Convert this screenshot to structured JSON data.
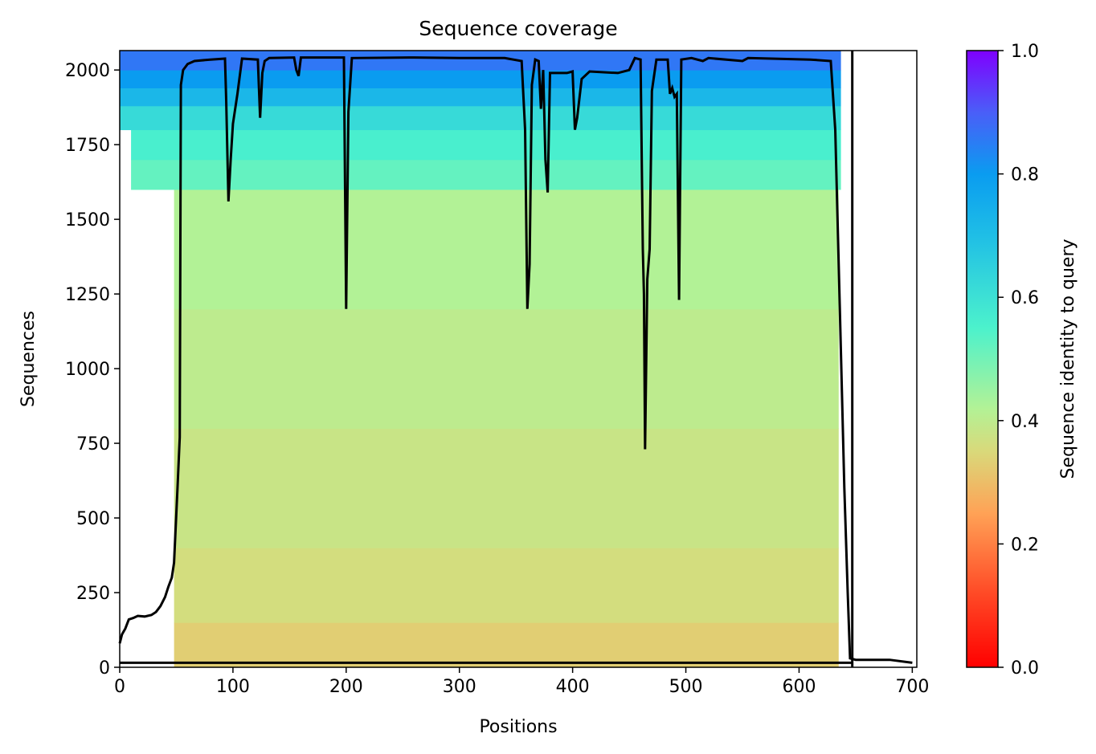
{
  "chart_data": {
    "type": "heatmap",
    "title": "Sequence coverage",
    "xlabel": "Positions",
    "ylabel": "Sequences",
    "xlim": [
      0,
      704
    ],
    "ylim": [
      0,
      2065
    ],
    "x_ticks": [
      "0",
      "100",
      "200",
      "300",
      "400",
      "500",
      "600",
      "700"
    ],
    "y_ticks": [
      "0",
      "250",
      "500",
      "750",
      "1000",
      "1250",
      "1500",
      "1750",
      "2000"
    ],
    "colorbar": {
      "label": "Sequence identity to query",
      "ticks": [
        "0.0",
        "0.2",
        "0.4",
        "0.6",
        "0.8",
        "1.0"
      ],
      "range": [
        0.0,
        1.0
      ],
      "colormap": "rainbow_r"
    },
    "query_length": 647,
    "identity_bands": [
      {
        "from": 0,
        "to": 150,
        "identity": 0.33
      },
      {
        "from": 150,
        "to": 400,
        "identity": 0.36
      },
      {
        "from": 400,
        "to": 800,
        "identity": 0.38
      },
      {
        "from": 800,
        "to": 1200,
        "identity": 0.4
      },
      {
        "from": 1200,
        "to": 1600,
        "identity": 0.42
      },
      {
        "from": 1600,
        "to": 1700,
        "identity": 0.52
      },
      {
        "from": 1700,
        "to": 1800,
        "identity": 0.56
      },
      {
        "from": 1800,
        "to": 1880,
        "identity": 0.62
      },
      {
        "from": 1880,
        "to": 1940,
        "identity": 0.72
      },
      {
        "from": 1940,
        "to": 2000,
        "identity": 0.8
      },
      {
        "from": 2000,
        "to": 2065,
        "identity": 0.86
      }
    ],
    "coverage_series": {
      "name": "",
      "color": "#000000",
      "points": [
        [
          0,
          80
        ],
        [
          2,
          110
        ],
        [
          5,
          130
        ],
        [
          8,
          160
        ],
        [
          12,
          165
        ],
        [
          16,
          172
        ],
        [
          22,
          170
        ],
        [
          28,
          175
        ],
        [
          32,
          185
        ],
        [
          36,
          205
        ],
        [
          40,
          235
        ],
        [
          43,
          270
        ],
        [
          46,
          300
        ],
        [
          48,
          350
        ],
        [
          51,
          600
        ],
        [
          53,
          770
        ],
        [
          54,
          1950
        ],
        [
          56,
          2000
        ],
        [
          60,
          2020
        ],
        [
          66,
          2030
        ],
        [
          80,
          2035
        ],
        [
          93,
          2038
        ],
        [
          94,
          1900
        ],
        [
          96,
          1560
        ],
        [
          98,
          1700
        ],
        [
          100,
          1820
        ],
        [
          104,
          1920
        ],
        [
          108,
          2038
        ],
        [
          122,
          2035
        ],
        [
          124,
          1840
        ],
        [
          126,
          1990
        ],
        [
          128,
          2030
        ],
        [
          132,
          2040
        ],
        [
          154,
          2042
        ],
        [
          156,
          2000
        ],
        [
          158,
          1980
        ],
        [
          160,
          2042
        ],
        [
          198,
          2042
        ],
        [
          200,
          1200
        ],
        [
          202,
          1860
        ],
        [
          205,
          2040
        ],
        [
          260,
          2042
        ],
        [
          300,
          2040
        ],
        [
          340,
          2040
        ],
        [
          355,
          2030
        ],
        [
          358,
          1800
        ],
        [
          360,
          1200
        ],
        [
          362,
          1350
        ],
        [
          364,
          1950
        ],
        [
          367,
          2035
        ],
        [
          370,
          2030
        ],
        [
          372,
          1870
        ],
        [
          374,
          2000
        ],
        [
          376,
          1700
        ],
        [
          378,
          1590
        ],
        [
          380,
          1990
        ],
        [
          395,
          1990
        ],
        [
          400,
          1995
        ],
        [
          402,
          1800
        ],
        [
          404,
          1840
        ],
        [
          408,
          1970
        ],
        [
          415,
          1995
        ],
        [
          440,
          1990
        ],
        [
          450,
          2000
        ],
        [
          455,
          2040
        ],
        [
          460,
          2035
        ],
        [
          462,
          1400
        ],
        [
          463,
          1250
        ],
        [
          464,
          730
        ],
        [
          466,
          1300
        ],
        [
          468,
          1400
        ],
        [
          470,
          1930
        ],
        [
          474,
          2035
        ],
        [
          484,
          2035
        ],
        [
          486,
          1920
        ],
        [
          488,
          1940
        ],
        [
          490,
          1910
        ],
        [
          492,
          1920
        ],
        [
          494,
          1230
        ],
        [
          496,
          2035
        ],
        [
          505,
          2040
        ],
        [
          515,
          2030
        ],
        [
          520,
          2040
        ],
        [
          550,
          2030
        ],
        [
          555,
          2040
        ],
        [
          610,
          2035
        ],
        [
          628,
          2030
        ],
        [
          632,
          1800
        ],
        [
          636,
          1200
        ],
        [
          640,
          600
        ],
        [
          643,
          250
        ],
        [
          645,
          30
        ],
        [
          650,
          25
        ],
        [
          680,
          25
        ],
        [
          700,
          15
        ]
      ]
    }
  }
}
